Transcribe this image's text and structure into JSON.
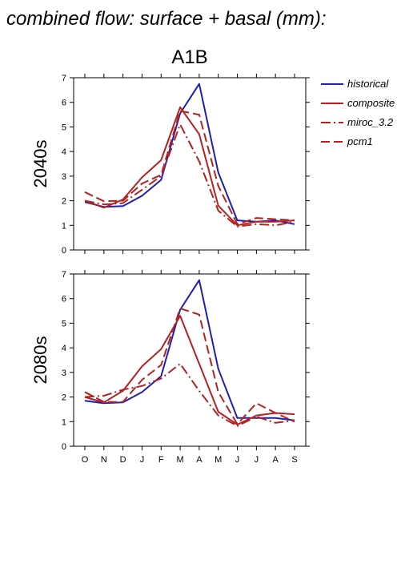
{
  "title": "combined flow: surface + basal (mm):",
  "scenario": "A1B",
  "colors": {
    "historical": "#1f1fb4",
    "model": "#b22222"
  },
  "legend": [
    {
      "name": "historical",
      "style": "solid",
      "color": "#1f1fb4"
    },
    {
      "name": "composite",
      "style": "solid",
      "color": "#b22222"
    },
    {
      "name": "miroc_3.2",
      "style": "dashdot",
      "color": "#b22222"
    },
    {
      "name": "pcm1",
      "style": "dashed",
      "color": "#b22222"
    }
  ],
  "chart_data": [
    {
      "type": "line",
      "panel": "2040s",
      "ylabel": "2040s",
      "ylim": [
        0,
        7
      ],
      "yticks": [
        0,
        1,
        2,
        3,
        4,
        5,
        6,
        7
      ],
      "categories": [
        "O",
        "N",
        "D",
        "J",
        "F",
        "M",
        "A",
        "M",
        "J",
        "J",
        "A",
        "S"
      ],
      "series": [
        {
          "name": "historical",
          "values": [
            1.95,
            1.75,
            1.78,
            2.2,
            2.85,
            5.55,
            6.75,
            3.15,
            1.2,
            1.15,
            1.2,
            1.05
          ]
        },
        {
          "name": "composite",
          "values": [
            2.0,
            1.72,
            2.05,
            2.95,
            3.65,
            5.8,
            4.7,
            1.8,
            1.0,
            1.15,
            1.15,
            1.2
          ]
        },
        {
          "name": "miroc_3.2",
          "values": [
            2.0,
            1.85,
            1.9,
            2.45,
            3.0,
            5.1,
            3.6,
            1.6,
            0.95,
            1.05,
            1.0,
            1.15
          ]
        },
        {
          "name": "pcm1",
          "values": [
            2.35,
            1.98,
            2.0,
            2.7,
            3.05,
            5.65,
            5.5,
            2.6,
            1.05,
            1.3,
            1.25,
            1.2
          ]
        }
      ]
    },
    {
      "type": "line",
      "panel": "2080s",
      "ylabel": "2080s",
      "xlabel": "",
      "ylim": [
        0,
        7
      ],
      "yticks": [
        0,
        1,
        2,
        3,
        4,
        5,
        6,
        7
      ],
      "categories": [
        "O",
        "N",
        "D",
        "J",
        "F",
        "M",
        "A",
        "M",
        "J",
        "J",
        "A",
        "S"
      ],
      "series": [
        {
          "name": "historical",
          "values": [
            1.85,
            1.75,
            1.78,
            2.2,
            2.85,
            5.55,
            6.75,
            3.15,
            1.15,
            1.15,
            1.15,
            1.05
          ]
        },
        {
          "name": "composite",
          "values": [
            2.0,
            1.78,
            2.25,
            3.25,
            3.95,
            5.3,
            3.35,
            1.4,
            0.88,
            1.25,
            1.35,
            1.3
          ]
        },
        {
          "name": "miroc_3.2",
          "values": [
            2.0,
            2.05,
            2.3,
            2.45,
            2.75,
            3.35,
            2.25,
            1.25,
            0.82,
            1.2,
            0.95,
            1.05
          ]
        },
        {
          "name": "pcm1",
          "values": [
            2.2,
            1.8,
            1.8,
            2.7,
            3.3,
            5.6,
            5.35,
            2.2,
            0.9,
            1.75,
            1.35,
            1.0
          ]
        }
      ]
    }
  ]
}
